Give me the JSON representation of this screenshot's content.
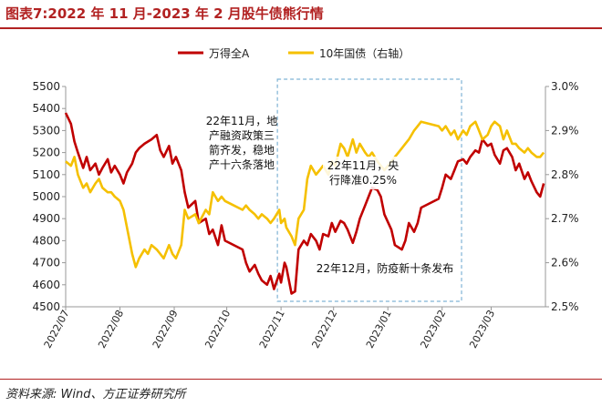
{
  "title": "图表7:2022 年 11 月-2023 年 2 月股牛债熊行情",
  "source": "资料来源: Wind、方正证券研究所",
  "chart_data": {
    "type": "line",
    "x_ticks": [
      "2022/07",
      "2022/08",
      "2022/09",
      "2022/10",
      "2022/11",
      "2022/12",
      "2023/01",
      "2023/02",
      "2023/03"
    ],
    "y_left": {
      "min": 4500,
      "max": 5500,
      "ticks": [
        "4500",
        "4600",
        "4700",
        "4800",
        "4900",
        "5000",
        "5100",
        "5200",
        "5300",
        "5400",
        "5500"
      ]
    },
    "y_right": {
      "min": 2.5,
      "max": 3.0,
      "ticks": [
        "2.5%",
        "2.6%",
        "2.7%",
        "2.8%",
        "2.9%",
        "3.0%"
      ]
    },
    "legend_position": "top-center",
    "series": [
      {
        "name": "万得全A",
        "axis": "left",
        "color": "#c00000",
        "x": [
          "2022-07-01",
          "2022-07-04",
          "2022-07-06",
          "2022-07-08",
          "2022-07-11",
          "2022-07-13",
          "2022-07-15",
          "2022-07-18",
          "2022-07-20",
          "2022-07-22",
          "2022-07-25",
          "2022-07-27",
          "2022-07-29",
          "2022-08-01",
          "2022-08-03",
          "2022-08-05",
          "2022-08-08",
          "2022-08-10",
          "2022-08-12",
          "2022-08-15",
          "2022-08-17",
          "2022-08-19",
          "2022-08-22",
          "2022-08-24",
          "2022-08-26",
          "2022-08-29",
          "2022-08-31",
          "2022-09-02",
          "2022-09-05",
          "2022-09-07",
          "2022-09-09",
          "2022-09-13",
          "2022-09-15",
          "2022-09-19",
          "2022-09-21",
          "2022-09-23",
          "2022-09-26",
          "2022-09-28",
          "2022-09-30",
          "2022-10-10",
          "2022-10-12",
          "2022-10-14",
          "2022-10-17",
          "2022-10-19",
          "2022-10-21",
          "2022-10-24",
          "2022-10-26",
          "2022-10-28",
          "2022-10-31",
          "2022-11-01",
          "2022-11-03",
          "2022-11-04",
          "2022-11-07",
          "2022-11-09",
          "2022-11-11",
          "2022-11-14",
          "2022-11-16",
          "2022-11-18",
          "2022-11-21",
          "2022-11-23",
          "2022-11-25",
          "2022-11-28",
          "2022-11-30",
          "2022-12-02",
          "2022-12-05",
          "2022-12-07",
          "2022-12-09",
          "2022-12-12",
          "2022-12-14",
          "2022-12-16",
          "2022-12-19",
          "2022-12-21",
          "2022-12-23",
          "2022-12-26",
          "2022-12-28",
          "2022-12-30",
          "2023-01-03",
          "2023-01-05",
          "2023-01-09",
          "2023-01-11",
          "2023-01-13",
          "2023-01-16",
          "2023-01-18",
          "2023-01-20",
          "2023-01-30",
          "2023-02-01",
          "2023-02-03",
          "2023-02-06",
          "2023-02-08",
          "2023-02-10",
          "2023-02-13",
          "2023-02-15",
          "2023-02-17",
          "2023-02-20",
          "2023-02-22",
          "2023-02-24",
          "2023-02-27",
          "2023-03-01",
          "2023-03-03",
          "2023-03-06",
          "2023-03-08",
          "2023-03-10",
          "2023-03-13",
          "2023-03-15",
          "2023-03-17",
          "2023-03-20",
          "2023-03-22",
          "2023-03-24",
          "2023-03-27",
          "2023-03-29",
          "2023-03-31"
        ],
        "values": [
          5380,
          5330,
          5250,
          5200,
          5130,
          5180,
          5120,
          5150,
          5100,
          5130,
          5170,
          5110,
          5140,
          5100,
          5060,
          5110,
          5150,
          5200,
          5220,
          5240,
          5250,
          5260,
          5280,
          5210,
          5180,
          5230,
          5150,
          5180,
          5120,
          5020,
          4950,
          4980,
          4880,
          4900,
          4830,
          4850,
          4780,
          4870,
          4800,
          4760,
          4700,
          4660,
          4690,
          4650,
          4620,
          4600,
          4640,
          4580,
          4650,
          4610,
          4700,
          4680,
          4560,
          4570,
          4760,
          4800,
          4780,
          4830,
          4800,
          4760,
          4830,
          4820,
          4880,
          4840,
          4890,
          4880,
          4850,
          4790,
          4840,
          4900,
          4960,
          5000,
          5040,
          5030,
          5000,
          4920,
          4850,
          4780,
          4760,
          4800,
          4880,
          4840,
          4880,
          4950,
          4990,
          5040,
          5100,
          5080,
          5120,
          5160,
          5170,
          5150,
          5180,
          5210,
          5200,
          5260,
          5230,
          5240,
          5190,
          5150,
          5210,
          5220,
          5180,
          5120,
          5150,
          5080,
          5110,
          5070,
          5020,
          5000,
          5060
        ]
      },
      {
        "name": "10年国债（右轴）",
        "axis": "right",
        "color": "#f5c000",
        "x": [
          "2022-07-01",
          "2022-07-04",
          "2022-07-06",
          "2022-07-08",
          "2022-07-11",
          "2022-07-13",
          "2022-07-15",
          "2022-07-18",
          "2022-07-20",
          "2022-07-22",
          "2022-07-25",
          "2022-07-27",
          "2022-07-29",
          "2022-08-01",
          "2022-08-03",
          "2022-08-05",
          "2022-08-08",
          "2022-08-10",
          "2022-08-12",
          "2022-08-15",
          "2022-08-17",
          "2022-08-19",
          "2022-08-22",
          "2022-08-24",
          "2022-08-26",
          "2022-08-29",
          "2022-08-31",
          "2022-09-02",
          "2022-09-05",
          "2022-09-07",
          "2022-09-09",
          "2022-09-13",
          "2022-09-15",
          "2022-09-19",
          "2022-09-21",
          "2022-09-23",
          "2022-09-26",
          "2022-09-28",
          "2022-09-30",
          "2022-10-10",
          "2022-10-12",
          "2022-10-14",
          "2022-10-17",
          "2022-10-19",
          "2022-10-21",
          "2022-10-24",
          "2022-10-26",
          "2022-10-28",
          "2022-10-31",
          "2022-11-01",
          "2022-11-03",
          "2022-11-04",
          "2022-11-07",
          "2022-11-09",
          "2022-11-11",
          "2022-11-14",
          "2022-11-16",
          "2022-11-18",
          "2022-11-21",
          "2022-11-23",
          "2022-11-25",
          "2022-11-28",
          "2022-11-30",
          "2022-12-02",
          "2022-12-05",
          "2022-12-07",
          "2022-12-09",
          "2022-12-12",
          "2022-12-14",
          "2022-12-16",
          "2022-12-19",
          "2022-12-21",
          "2022-12-23",
          "2022-12-26",
          "2022-12-28",
          "2022-12-30",
          "2023-01-03",
          "2023-01-05",
          "2023-01-09",
          "2023-01-11",
          "2023-01-13",
          "2023-01-16",
          "2023-01-18",
          "2023-01-20",
          "2023-01-30",
          "2023-02-01",
          "2023-02-03",
          "2023-02-06",
          "2023-02-08",
          "2023-02-10",
          "2023-02-13",
          "2023-02-15",
          "2023-02-17",
          "2023-02-20",
          "2023-02-22",
          "2023-02-24",
          "2023-02-27",
          "2023-03-01",
          "2023-03-03",
          "2023-03-06",
          "2023-03-08",
          "2023-03-10",
          "2023-03-13",
          "2023-03-15",
          "2023-03-17",
          "2023-03-20",
          "2023-03-22",
          "2023-03-24",
          "2023-03-27",
          "2023-03-29",
          "2023-03-31"
        ],
        "values": [
          2.83,
          2.82,
          2.84,
          2.8,
          2.77,
          2.78,
          2.76,
          2.78,
          2.79,
          2.77,
          2.76,
          2.76,
          2.75,
          2.74,
          2.72,
          2.68,
          2.62,
          2.59,
          2.61,
          2.63,
          2.62,
          2.64,
          2.63,
          2.62,
          2.61,
          2.64,
          2.62,
          2.61,
          2.64,
          2.72,
          2.7,
          2.71,
          2.69,
          2.72,
          2.71,
          2.76,
          2.74,
          2.75,
          2.74,
          2.72,
          2.73,
          2.72,
          2.71,
          2.7,
          2.71,
          2.7,
          2.69,
          2.7,
          2.72,
          2.69,
          2.7,
          2.68,
          2.66,
          2.64,
          2.7,
          2.72,
          2.79,
          2.82,
          2.8,
          2.81,
          2.82,
          2.8,
          2.83,
          2.82,
          2.87,
          2.86,
          2.84,
          2.88,
          2.85,
          2.87,
          2.85,
          2.84,
          2.85,
          2.83,
          2.82,
          2.81,
          2.83,
          2.84,
          2.86,
          2.87,
          2.88,
          2.9,
          2.91,
          2.92,
          2.91,
          2.9,
          2.91,
          2.89,
          2.9,
          2.88,
          2.9,
          2.89,
          2.91,
          2.92,
          2.9,
          2.88,
          2.89,
          2.91,
          2.92,
          2.91,
          2.88,
          2.9,
          2.87,
          2.87,
          2.86,
          2.85,
          2.86,
          2.85,
          2.84,
          2.84,
          2.85
        ]
      }
    ],
    "annotations": [
      {
        "lines": [
          "22年11月，地",
          "产融资政策三",
          "箭齐发，稳地",
          "产十六条落地"
        ]
      },
      {
        "lines": [
          "22年11月，央",
          "行降准0.25%"
        ]
      },
      {
        "lines": [
          "22年12月，防疫新十条发布"
        ]
      }
    ],
    "highlight": {
      "x_start": "2022-11-01",
      "x_end": "2023-02-10",
      "style": "dashed"
    }
  }
}
